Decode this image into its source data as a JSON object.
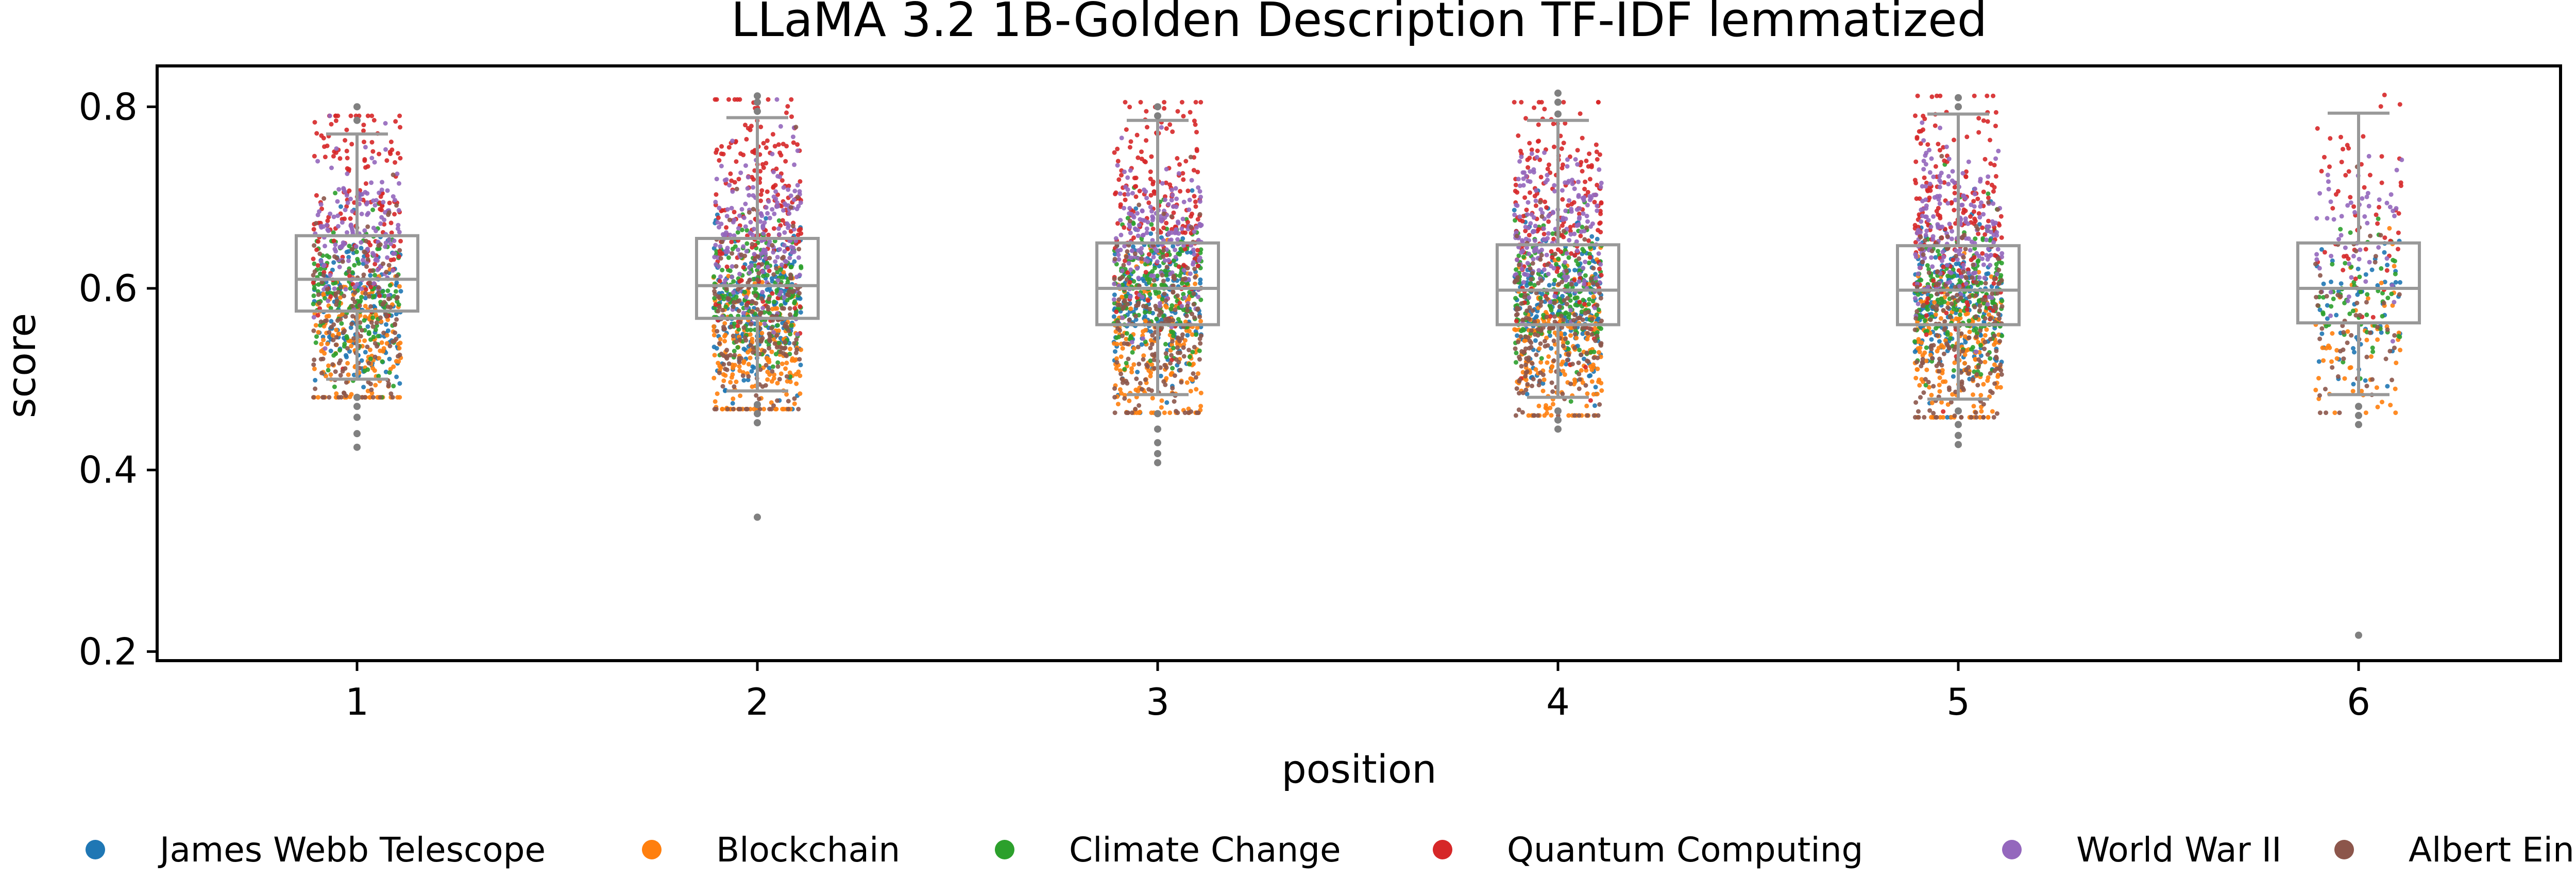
{
  "chart_data": {
    "type": "box-strip",
    "title": "LLaMA 3.2 1B-Golden Description TF-IDF lemmatized",
    "xlabel": "position",
    "ylabel": "score",
    "ylim": [
      0.19,
      0.845
    ],
    "yticks": [
      0.2,
      0.4,
      0.6,
      0.8
    ],
    "categories": [
      "1",
      "2",
      "3",
      "4",
      "5",
      "6"
    ],
    "legend_position": "bottom",
    "grid": false,
    "box_color": "#999999",
    "boxes": [
      {
        "position": "1",
        "q1": 0.575,
        "median": 0.61,
        "q3": 0.658,
        "whisker_low": 0.5,
        "whisker_high": 0.77,
        "outliers": [
          0.425,
          0.44,
          0.458,
          0.47,
          0.48,
          0.785,
          0.8
        ]
      },
      {
        "position": "2",
        "q1": 0.567,
        "median": 0.603,
        "q3": 0.655,
        "whisker_low": 0.487,
        "whisker_high": 0.788,
        "outliers": [
          0.348,
          0.452,
          0.462,
          0.472,
          0.795,
          0.805,
          0.812
        ]
      },
      {
        "position": "3",
        "q1": 0.56,
        "median": 0.6,
        "q3": 0.65,
        "whisker_low": 0.483,
        "whisker_high": 0.785,
        "outliers": [
          0.408,
          0.418,
          0.43,
          0.445,
          0.462,
          0.79,
          0.8
        ]
      },
      {
        "position": "4",
        "q1": 0.56,
        "median": 0.598,
        "q3": 0.648,
        "whisker_low": 0.48,
        "whisker_high": 0.785,
        "outliers": [
          0.445,
          0.455,
          0.465,
          0.792,
          0.805,
          0.815
        ]
      },
      {
        "position": "5",
        "q1": 0.56,
        "median": 0.598,
        "q3": 0.647,
        "whisker_low": 0.478,
        "whisker_high": 0.792,
        "outliers": [
          0.428,
          0.438,
          0.45,
          0.465,
          0.8,
          0.81
        ]
      },
      {
        "position": "6",
        "q1": 0.562,
        "median": 0.6,
        "q3": 0.65,
        "whisker_low": 0.483,
        "whisker_high": 0.793,
        "outliers": [
          0.218,
          0.45,
          0.46,
          0.47
        ]
      }
    ],
    "series": [
      {
        "name": "James Webb Telescope",
        "color": "#1f77b4",
        "typical_range": [
          0.5,
          0.66
        ]
      },
      {
        "name": "Blockchain",
        "color": "#ff7f0e",
        "typical_range": [
          0.45,
          0.62
        ]
      },
      {
        "name": "Climate Change",
        "color": "#2ca02c",
        "typical_range": [
          0.52,
          0.67
        ]
      },
      {
        "name": "Quantum Computing",
        "color": "#d62728",
        "typical_range": [
          0.58,
          0.81
        ]
      },
      {
        "name": "World War II",
        "color": "#9467bd",
        "typical_range": [
          0.58,
          0.74
        ]
      },
      {
        "name": "Albert Einstein",
        "color": "#8c564b",
        "typical_range": [
          0.45,
          0.66
        ]
      }
    ]
  }
}
